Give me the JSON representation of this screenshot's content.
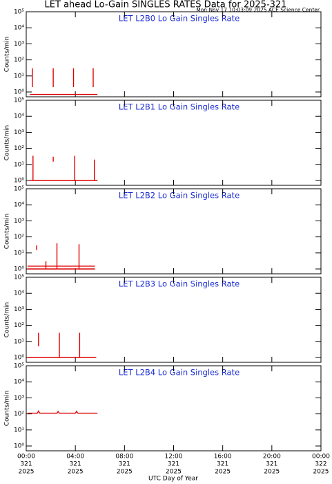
{
  "title": "LET ahead Lo-Gain SINGLES RATES Data for 2025-321",
  "timestamp": "Mon Nov 17 10:03:09 2025 ACE Science Center",
  "x_axis": {
    "label": "UTC Day of Year",
    "xlim": [
      0,
      24
    ],
    "xticks": [
      {
        "value": 0,
        "label": "00:00"
      },
      {
        "value": 4,
        "label": "04:00"
      },
      {
        "value": 8,
        "label": "08:00"
      },
      {
        "value": 12,
        "label": "12:00"
      },
      {
        "value": 16,
        "label": "16:00"
      },
      {
        "value": 20,
        "label": "20:00"
      },
      {
        "value": 24,
        "label": "00:00"
      }
    ],
    "days": [
      "321",
      "321",
      "321",
      "321",
      "321",
      "321",
      "322"
    ],
    "years": [
      "2025",
      "2025",
      "2025",
      "2025",
      "2025",
      "2025",
      "2025"
    ]
  },
  "chart_data": [
    {
      "type": "line",
      "title": "LET L2B0 Lo Gain Singles Rate",
      "ylabel": "Counts/min",
      "log_y": true,
      "ylim": [
        0.5,
        100000
      ],
      "yticks": [
        {
          "value": 1,
          "label": "10⁰"
        },
        {
          "value": 10,
          "label": "10¹"
        },
        {
          "value": 100,
          "label": "10²"
        },
        {
          "value": 1000,
          "label": "10³"
        },
        {
          "value": 10000,
          "label": "10⁴"
        },
        {
          "value": 100000,
          "label": "10⁵"
        }
      ],
      "series": [
        {
          "color": "#e00000",
          "x": [
            0.5,
            0.5,
            0.5,
            2.2,
            2.2,
            2.2,
            3.85,
            3.85,
            3.85,
            5.45,
            5.45,
            5.45,
            0.3,
            5.8
          ],
          "values": [
            30,
            2,
            null,
            30,
            2,
            null,
            30,
            2,
            null,
            30,
            2,
            null,
            0.7,
            0.7
          ]
        }
      ]
    },
    {
      "type": "line",
      "title": "LET L2B1 Lo Gain Singles Rate",
      "ylabel": "Counts/min",
      "log_y": true,
      "ylim": [
        0.5,
        100000
      ],
      "yticks": [
        {
          "value": 1,
          "label": "10⁰"
        },
        {
          "value": 10,
          "label": "10¹"
        },
        {
          "value": 100,
          "label": "10²"
        },
        {
          "value": 1000,
          "label": "10³"
        },
        {
          "value": 10000,
          "label": "10⁴"
        },
        {
          "value": 100000,
          "label": "10⁵"
        }
      ],
      "series": [
        {
          "color": "#e00000",
          "x": [
            0.55,
            0.55,
            0.55,
            2.2,
            2.2,
            2.2,
            3.95,
            3.95,
            3.95,
            5.55,
            5.55,
            5.55,
            0.3,
            5.8
          ],
          "values": [
            35,
            1,
            null,
            30,
            15,
            null,
            35,
            1,
            null,
            20,
            1,
            null,
            1,
            1
          ]
        }
      ]
    },
    {
      "type": "line",
      "title": "LET L2B2 Lo Gain Singles Rate",
      "ylabel": "Counts/min",
      "log_y": true,
      "ylim": [
        0.5,
        100000
      ],
      "yticks": [
        {
          "value": 1,
          "label": "10⁰"
        },
        {
          "value": 10,
          "label": "10¹"
        },
        {
          "value": 100,
          "label": "10²"
        },
        {
          "value": 1000,
          "label": "10³"
        },
        {
          "value": 10000,
          "label": "10⁴"
        },
        {
          "value": 100000,
          "label": "10⁵"
        }
      ],
      "series": [
        {
          "color": "#e00000",
          "x": [
            0.85,
            0.85,
            0.85,
            1.6,
            1.6,
            1.6,
            2.5,
            2.5,
            2.5,
            4.3,
            4.3,
            4.3,
            0.1,
            5.6,
            5.6,
            0.1,
            5.6
          ],
          "values": [
            30,
            15,
            null,
            3,
            1,
            null,
            40,
            1,
            null,
            35,
            1,
            null,
            1.5,
            1.5,
            null,
            1,
            1
          ]
        }
      ]
    },
    {
      "type": "line",
      "title": "LET L2B3 Lo Gain Singles Rate",
      "ylabel": "Counts/min",
      "log_y": true,
      "ylim": [
        0.5,
        100000
      ],
      "yticks": [
        {
          "value": 1,
          "label": "10⁰"
        },
        {
          "value": 10,
          "label": "10¹"
        },
        {
          "value": 100,
          "label": "10²"
        },
        {
          "value": 1000,
          "label": "10³"
        },
        {
          "value": 10000,
          "label": "10⁴"
        },
        {
          "value": 100000,
          "label": "10⁵"
        }
      ],
      "series": [
        {
          "color": "#e00000",
          "x": [
            1.0,
            1.0,
            1.0,
            2.7,
            2.7,
            2.7,
            4.35,
            4.35,
            4.35,
            0.1,
            5.7
          ],
          "values": [
            35,
            5,
            null,
            35,
            1,
            null,
            35,
            1,
            null,
            1,
            1
          ]
        }
      ]
    },
    {
      "type": "line",
      "title": "LET L2B4 Lo Gain Singles Rate",
      "ylabel": "Counts/min",
      "log_y": true,
      "ylim": [
        0.5,
        100000
      ],
      "yticks": [
        {
          "value": 1,
          "label": "10⁰"
        },
        {
          "value": 10,
          "label": "10¹"
        },
        {
          "value": 100,
          "label": "10²"
        },
        {
          "value": 1000,
          "label": "10³"
        },
        {
          "value": 10000,
          "label": "10⁴"
        },
        {
          "value": 100000,
          "label": "10⁵"
        }
      ],
      "series": [
        {
          "color": "#e00000",
          "x": [
            0.1,
            0.9,
            1.0,
            1.1,
            2.5,
            2.6,
            2.7,
            4.0,
            4.1,
            4.2,
            5.8
          ],
          "values": [
            110,
            110,
            150,
            110,
            110,
            140,
            110,
            110,
            145,
            110,
            110
          ]
        }
      ]
    }
  ]
}
